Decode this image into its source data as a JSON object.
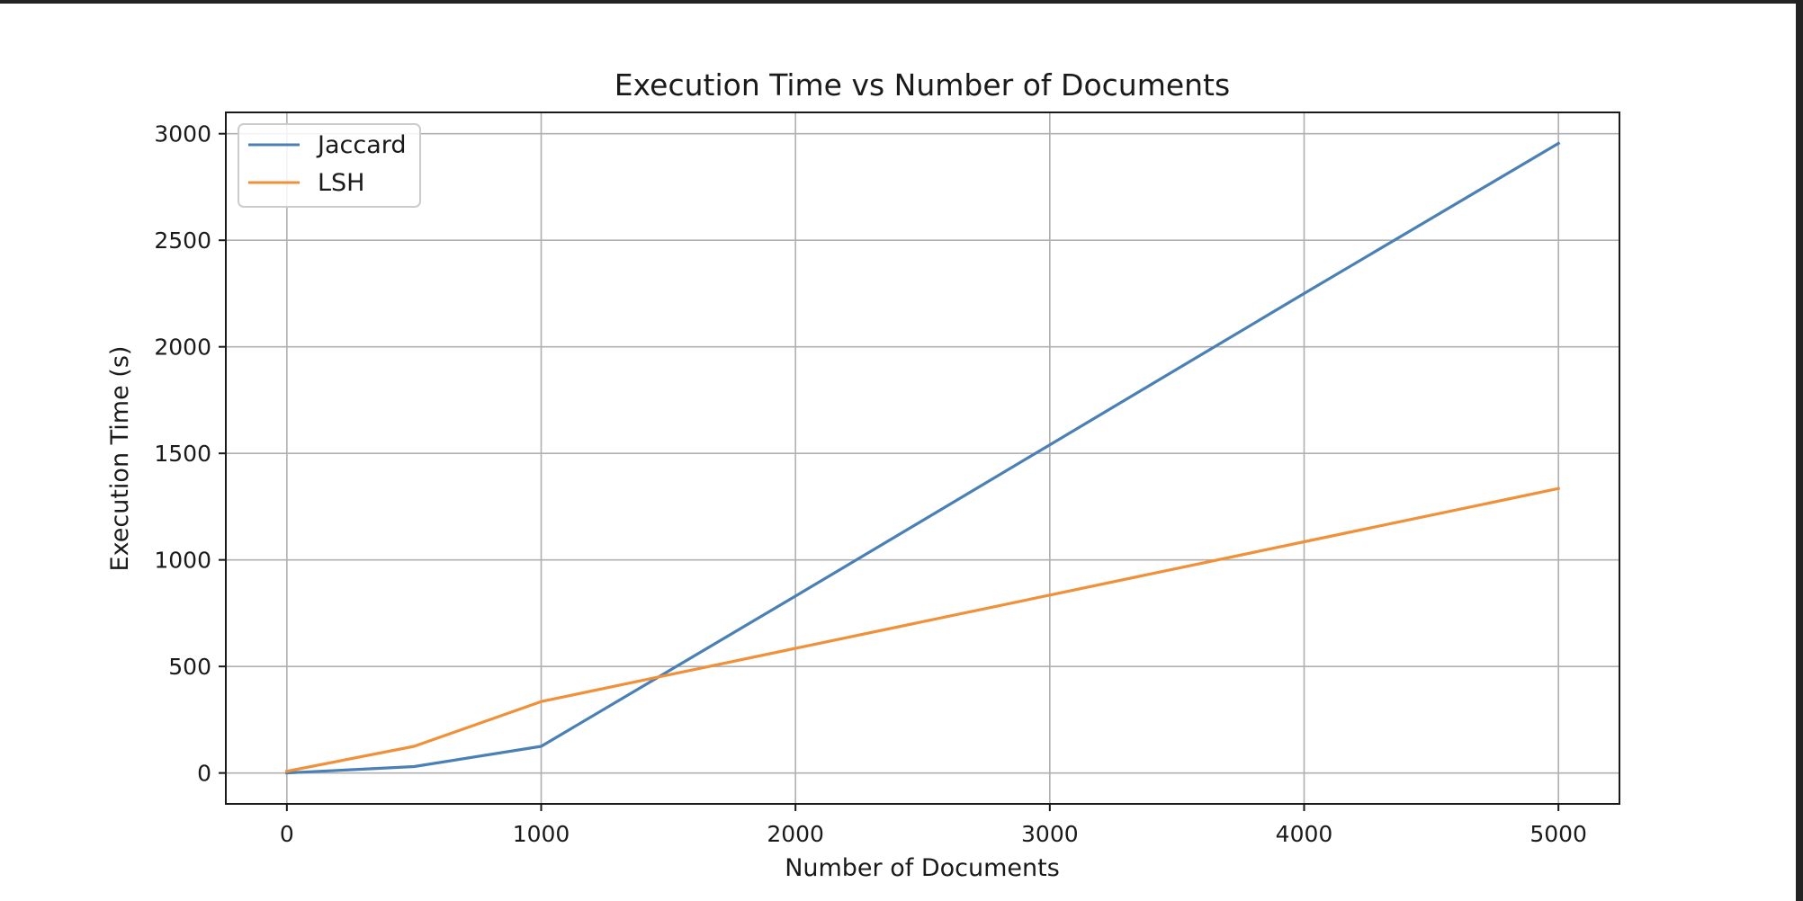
{
  "chart_data": {
    "type": "line",
    "title": "Execution Time vs Number of Documents",
    "xlabel": "Number of Documents",
    "ylabel": "Execution Time (s)",
    "xlim": [
      -240,
      5240
    ],
    "ylim": [
      -145,
      3100
    ],
    "xticks": [
      0,
      1000,
      2000,
      3000,
      4000,
      5000
    ],
    "yticks": [
      0,
      500,
      1000,
      1500,
      2000,
      2500,
      3000
    ],
    "grid": true,
    "legend_position": "top-left",
    "series": [
      {
        "name": "Jaccard",
        "color": "#4a80b5",
        "x": [
          0,
          500,
          1000,
          2000,
          3000,
          4000,
          5000
        ],
        "y": [
          0,
          30,
          125,
          830,
          1540,
          2250,
          2955
        ]
      },
      {
        "name": "LSH",
        "color": "#f0913a",
        "x": [
          0,
          500,
          1000,
          2000,
          3000,
          4000,
          5000
        ],
        "y": [
          8,
          125,
          335,
          585,
          835,
          1085,
          1335
        ]
      }
    ]
  }
}
